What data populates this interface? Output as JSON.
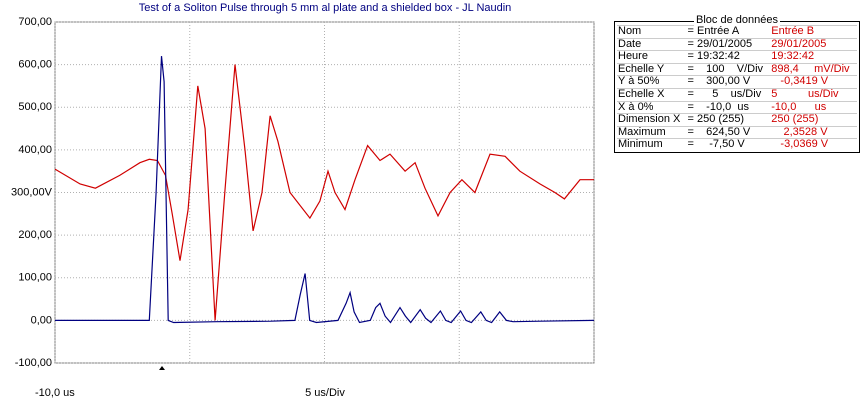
{
  "chart_data": {
    "type": "line",
    "title": "Test of a Soliton Pulse through 5 mm al plate and a shielded box - JL Naudin",
    "x_start_label": "-10,0 us",
    "x_axis_label": "5 us/Div",
    "xlim": [
      -10,
      10
    ],
    "xticks": [
      -10,
      -5,
      0,
      5,
      10
    ],
    "ylim": [
      -100,
      700
    ],
    "yticks": [
      {
        "value": -100,
        "label": "-100,00"
      },
      {
        "value": 0,
        "label": "0,00"
      },
      {
        "value": 100,
        "label": "100,00"
      },
      {
        "value": 200,
        "label": "200,00"
      },
      {
        "value": 300,
        "label": "300,00V"
      },
      {
        "value": 400,
        "label": "400,00"
      },
      {
        "value": 500,
        "label": "500,00"
      },
      {
        "value": 600,
        "label": "600,00"
      },
      {
        "value": 700,
        "label": "700,00"
      }
    ],
    "grid": true,
    "series": [
      {
        "name": "Entrée A",
        "color": "#000080",
        "x": [
          -10,
          -6.5,
          -6.25,
          -6.05,
          -5.95,
          -5.8,
          -5.6,
          -4,
          -2,
          -1.1,
          -0.9,
          -0.72,
          -0.55,
          -0.3,
          0.5,
          0.8,
          0.95,
          1.1,
          1.3,
          1.7,
          1.9,
          2.06,
          2.25,
          2.45,
          2.8,
          3.0,
          3.2,
          3.55,
          3.75,
          3.95,
          4.3,
          4.5,
          4.7,
          5.05,
          5.25,
          5.45,
          5.8,
          6.0,
          6.2,
          6.5,
          6.75,
          7,
          8,
          10
        ],
        "values": [
          0,
          0,
          300,
          620,
          560,
          0,
          -5,
          -3,
          -2,
          0,
          60,
          110,
          0,
          -5,
          0,
          40,
          65,
          20,
          -5,
          0,
          30,
          40,
          10,
          -5,
          30,
          10,
          -5,
          25,
          5,
          -5,
          22,
          0,
          -5,
          22,
          0,
          -5,
          20,
          0,
          -5,
          20,
          0,
          -3,
          -2,
          0
        ]
      },
      {
        "name": "Entrée B",
        "color": "#d00000",
        "x": [
          -10,
          -9.07,
          -8.5,
          -7.6,
          -6.85,
          -6.5,
          -6.2,
          -5.9,
          -5.65,
          -5.36,
          -5.06,
          -4.7,
          -4.43,
          -4.06,
          -3.7,
          -3.32,
          -2.95,
          -2.65,
          -2.32,
          -2.02,
          -1.73,
          -1.28,
          -0.54,
          -0.17,
          0.13,
          0.39,
          0.76,
          1.13,
          1.6,
          2.06,
          2.43,
          2.99,
          3.36,
          3.73,
          4.21,
          4.66,
          5.1,
          5.58,
          6.14,
          6.7,
          7.25,
          8.0,
          8.55,
          8.9,
          9.48,
          10
        ],
        "values": [
          355,
          320,
          310,
          340,
          370,
          378,
          375,
          340,
          250,
          140,
          260,
          550,
          450,
          0,
          300,
          600,
          400,
          210,
          300,
          480,
          420,
          300,
          240,
          280,
          350,
          300,
          260,
          330,
          410,
          375,
          390,
          350,
          370,
          310,
          245,
          300,
          330,
          300,
          390,
          385,
          350,
          320,
          300,
          285,
          330,
          330
        ]
      }
    ]
  },
  "data_block": {
    "title": "Bloc de données",
    "rows": [
      [
        "Nom",
        "= Entrée A",
        "Entrée B"
      ],
      [
        "Date",
        "= 29/01/2005",
        "29/01/2005"
      ],
      [
        "Heure",
        "= 19:32:42",
        "19:32:42"
      ],
      [
        "Echelle Y",
        "=    100    V/Div",
        "898,4     mV/Div"
      ],
      [
        "Y à 50%",
        "=    300,00 V",
        "   -0,3419 V"
      ],
      [
        "Echelle X",
        "=      5    us/Div",
        "5          us/Div"
      ],
      [
        "X à 0%",
        "=    -10,0  us",
        "-10,0      us"
      ],
      [
        "Dimension X",
        "= 250 (255)",
        "250 (255)"
      ],
      [
        "Maximum",
        "=    624,50 V",
        "    2,3528 V"
      ],
      [
        "Minimum",
        "=     -7,50 V",
        "   -3,0369 V"
      ]
    ]
  }
}
